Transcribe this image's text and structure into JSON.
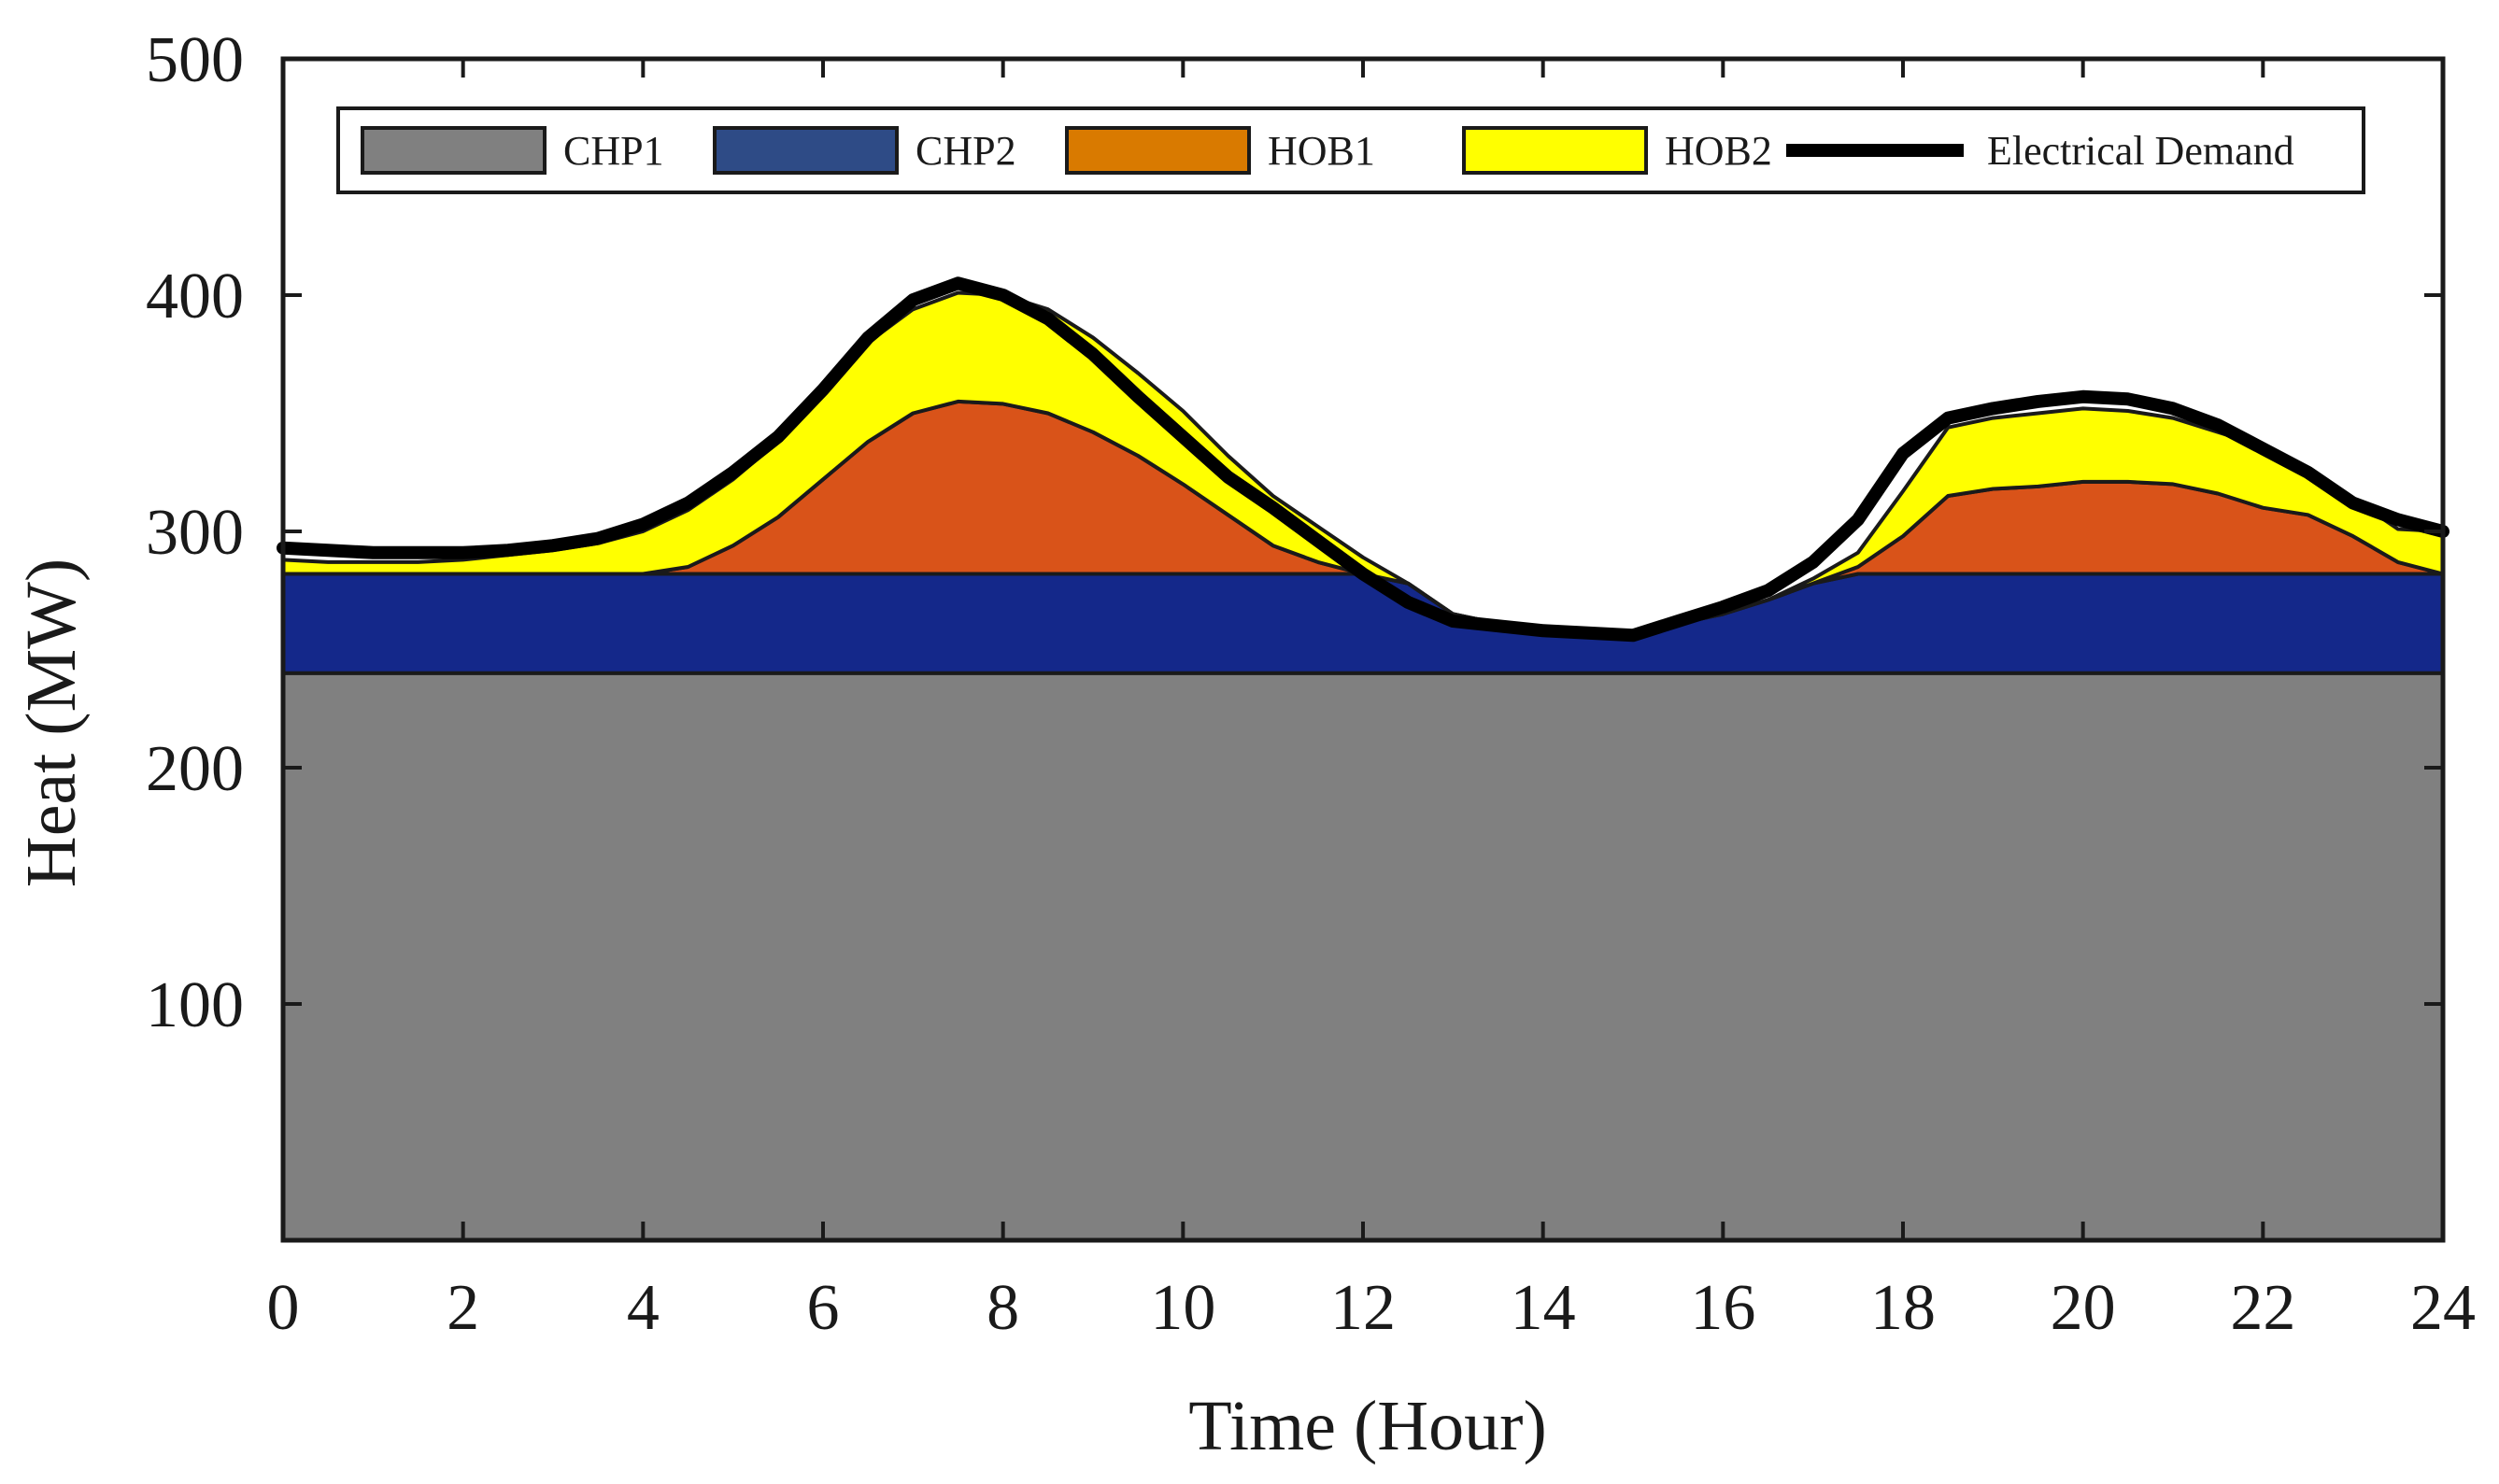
{
  "chart_data": {
    "type": "area",
    "xlabel": "Time (Hour)",
    "ylabel": "Heat (MW)",
    "xlim": [
      0,
      24
    ],
    "ylim": [
      0,
      500
    ],
    "xticks": [
      0,
      2,
      4,
      6,
      8,
      10,
      12,
      14,
      16,
      18,
      20,
      22,
      24
    ],
    "yticks": [
      100,
      200,
      300,
      400,
      500
    ],
    "grid": false,
    "legend_position": "top",
    "x": [
      0,
      0.5,
      1,
      1.5,
      2,
      2.5,
      3,
      3.5,
      4,
      4.5,
      5,
      5.5,
      6,
      6.5,
      7,
      7.5,
      8,
      8.5,
      9,
      9.5,
      10,
      10.5,
      11,
      11.5,
      12,
      12.5,
      13,
      13.5,
      14,
      14.5,
      15,
      15.5,
      16,
      16.5,
      17,
      17.5,
      18,
      18.5,
      19,
      19.5,
      20,
      20.5,
      21,
      21.5,
      22,
      22.5,
      23,
      23.5,
      24
    ],
    "series": [
      {
        "name": "CHP1",
        "color": "#808080",
        "values": [
          240,
          240,
          240,
          240,
          240,
          240,
          240,
          240,
          240,
          240,
          240,
          240,
          240,
          240,
          240,
          240,
          240,
          240,
          240,
          240,
          240,
          240,
          240,
          240,
          240,
          240,
          240,
          240,
          240,
          240,
          240,
          240,
          240,
          240,
          240,
          240,
          240,
          240,
          240,
          240,
          240,
          240,
          240,
          240,
          240,
          240,
          240,
          240,
          240
        ]
      },
      {
        "name": "CHP2",
        "color": "#14288a",
        "legend_color": "#2e4b86",
        "values": [
          42,
          42,
          42,
          42,
          42,
          42,
          42,
          42,
          42,
          42,
          42,
          42,
          42,
          42,
          42,
          42,
          42,
          42,
          42,
          42,
          42,
          42,
          42,
          42,
          42,
          38,
          25,
          21,
          19,
          18,
          16,
          21,
          25,
          31,
          38,
          42,
          42,
          42,
          42,
          42,
          42,
          42,
          42,
          42,
          42,
          42,
          42,
          42,
          42
        ]
      },
      {
        "name": "HOB1",
        "color": "#d95319",
        "legend_color": "#d97a00",
        "values": [
          0,
          0,
          0,
          0,
          0,
          0,
          0,
          0,
          0,
          3,
          12,
          24,
          40,
          56,
          68,
          73,
          72,
          68,
          60,
          50,
          38,
          25,
          12,
          5,
          0,
          0,
          0,
          0,
          0,
          0,
          0,
          0,
          0,
          0,
          0,
          3,
          16,
          33,
          36,
          37,
          39,
          39,
          38,
          34,
          28,
          25,
          16,
          5,
          0
        ]
      },
      {
        "name": "HOB2",
        "color": "#ffff00",
        "values": [
          6,
          5,
          5,
          5,
          6,
          8,
          10,
          13,
          18,
          24,
          28,
          32,
          38,
          42,
          44,
          46,
          46,
          44,
          40,
          35,
          31,
          25,
          21,
          15,
          7,
          0,
          0,
          0,
          0,
          0,
          0,
          0,
          0,
          0,
          2,
          6,
          19,
          29,
          30,
          31,
          31,
          30,
          28,
          26,
          26,
          20,
          16,
          14,
          18
        ]
      }
    ],
    "line_series": [
      {
        "name": "Electrical Demand",
        "color": "#000000",
        "values": [
          293,
          292,
          291,
          291,
          291,
          292,
          294,
          297,
          303,
          312,
          325,
          340,
          360,
          382,
          398,
          405,
          400,
          390,
          375,
          357,
          340,
          323,
          310,
          296,
          282,
          270,
          262,
          260,
          258,
          257,
          256,
          262,
          268,
          275,
          287,
          305,
          333,
          348,
          352,
          355,
          357,
          356,
          352,
          345,
          335,
          325,
          312,
          305,
          300
        ]
      }
    ]
  }
}
